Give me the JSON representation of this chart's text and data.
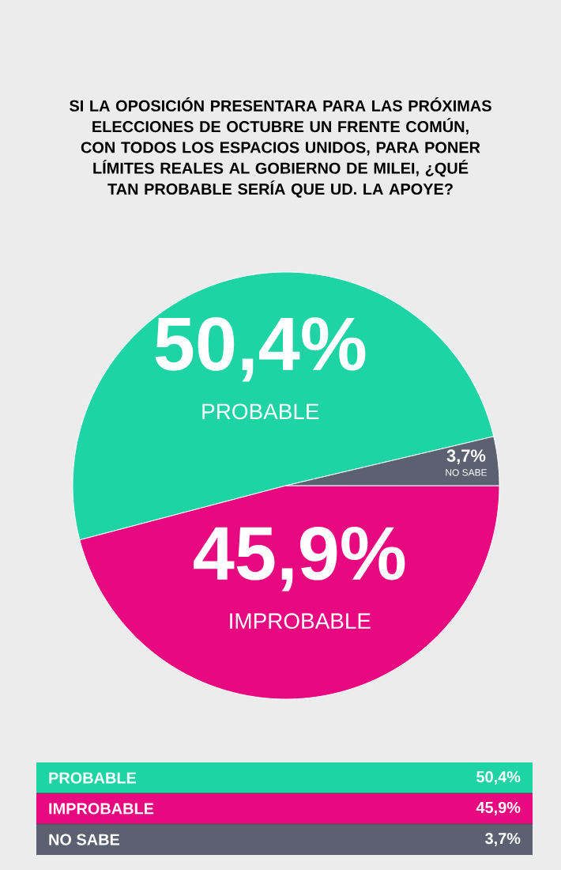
{
  "chart_data": {
    "type": "pie",
    "title": "SI LA OPOSICIÓN PRESENTARA PARA LAS PRÓXIMAS ELECCIONES DE OCTUBRE UN FRENTE COMÚN, CON TODOS LOS ESPACIOS UNIDOS, PARA PONER LÍMITES REALES AL GOBIERNO DE MILEI, ¿QUÉ TAN PROBABLE SERÍA QUE UD. LA APOYE?",
    "categories": [
      "PROBABLE",
      "IMPROBABLE",
      "NO SABE"
    ],
    "values": [
      50.4,
      45.9,
      3.7
    ],
    "colors": [
      "#1ed3a4",
      "#e8087f",
      "#5b6170"
    ],
    "value_labels": [
      "50,4%",
      "45,9%",
      "3,7%"
    ]
  }
}
